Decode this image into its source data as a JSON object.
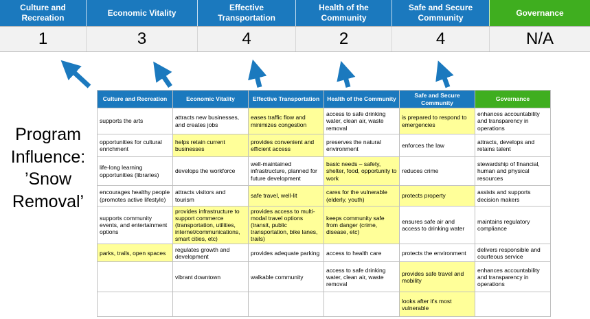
{
  "slide_title": "Program Influence: ’Snow Removal’",
  "colors": {
    "header_blue": "#1b79be",
    "header_green": "#3fae1f",
    "arrow_blue": "#1b79be",
    "highlight_yellow": "#ffff99",
    "score_band_gray": "#f2f2f2"
  },
  "banner": {
    "columns": [
      {
        "label": "Culture and Recreation",
        "score": "1",
        "color": "blue"
      },
      {
        "label": "Economic Vitality",
        "score": "3",
        "color": "blue"
      },
      {
        "label": "Effective Transportation",
        "score": "4",
        "color": "blue"
      },
      {
        "label": "Health of the Community",
        "score": "2",
        "color": "blue"
      },
      {
        "label": "Safe and Secure Community",
        "score": "4",
        "color": "blue"
      },
      {
        "label": "Governance",
        "score": "N/A",
        "color": "green"
      }
    ]
  },
  "matrix": {
    "headers": [
      {
        "label": "Culture and Recreation",
        "color": "blue"
      },
      {
        "label": "Economic Vitality",
        "color": "blue"
      },
      {
        "label": "Effective Transportation",
        "color": "blue"
      },
      {
        "label": "Health of the Community",
        "color": "blue"
      },
      {
        "label": "Safe and Secure Community",
        "color": "blue"
      },
      {
        "label": "Governance",
        "color": "green"
      }
    ],
    "rows": [
      [
        {
          "text": "supports the arts",
          "highlight": false
        },
        {
          "text": "attracts new businesses, and creates jobs",
          "highlight": false
        },
        {
          "text": "eases traffic flow and minimizes congestion",
          "highlight": true
        },
        {
          "text": "access to safe drinking water, clean air, waste removal",
          "highlight": false
        },
        {
          "text": "is prepared to respond to emergencies",
          "highlight": true
        },
        {
          "text": "enhances accountability and transparency in operations",
          "highlight": false
        }
      ],
      [
        {
          "text": "opportunities for cultural enrichment",
          "highlight": false
        },
        {
          "text": "helps retain current businesses",
          "highlight": true
        },
        {
          "text": "provides convenient and efficient access",
          "highlight": true
        },
        {
          "text": "preserves the natural environment",
          "highlight": false
        },
        {
          "text": "enforces the law",
          "highlight": false
        },
        {
          "text": "attracts, develops and retains talent",
          "highlight": false
        }
      ],
      [
        {
          "text": "life-long learning opportunities (libraries)",
          "highlight": false
        },
        {
          "text": "develops the workforce",
          "highlight": false
        },
        {
          "text": "well-maintained infrastructure, planned for future development",
          "highlight": false
        },
        {
          "text": "basic needs – safety, shelter, food, opportunity to work",
          "highlight": true
        },
        {
          "text": "reduces crime",
          "highlight": false
        },
        {
          "text": "stewardship of financial, human and physical resources",
          "highlight": false
        }
      ],
      [
        {
          "text": "encourages healthy people (promotes active lifestyle)",
          "highlight": false
        },
        {
          "text": "attracts visitors and tourism",
          "highlight": false
        },
        {
          "text": "safe travel, well-lit",
          "highlight": true
        },
        {
          "text": "cares for the vulnerable (elderly, youth)",
          "highlight": true
        },
        {
          "text": "protects property",
          "highlight": true
        },
        {
          "text": "assists and supports decision makers",
          "highlight": false
        }
      ],
      [
        {
          "text": "supports community events, and entertainment options",
          "highlight": false
        },
        {
          "text": "provides infrastructure to support commerce (transportation, utilities, internet/communications, smart cities, etc)",
          "highlight": true
        },
        {
          "text": "provides access to multi-modal travel options (transit, public transportation, bike lanes, trails)",
          "highlight": true
        },
        {
          "text": "keeps community safe from danger (crime, disease, etc)",
          "highlight": true
        },
        {
          "text": "ensures safe air and access to drinking water",
          "highlight": false
        },
        {
          "text": "maintains regulatory compliance",
          "highlight": false
        }
      ],
      [
        {
          "text": "parks, trails, open spaces",
          "highlight": true
        },
        {
          "text": "regulates growth and development",
          "highlight": false
        },
        {
          "text": "provides adequate parking",
          "highlight": false
        },
        {
          "text": "access to health care",
          "highlight": false
        },
        {
          "text": "protects the environment",
          "highlight": false
        },
        {
          "text": "delivers responsible and courteous service",
          "highlight": false
        }
      ],
      [
        {
          "text": "",
          "highlight": false
        },
        {
          "text": "vibrant downtown",
          "highlight": false
        },
        {
          "text": "walkable community",
          "highlight": false
        },
        {
          "text": "access to safe drinking water, clean air, waste removal",
          "highlight": false
        },
        {
          "text": "provides safe travel and mobility",
          "highlight": true
        },
        {
          "text": "enhances accountability and transparency in operations",
          "highlight": false
        }
      ],
      [
        {
          "text": "",
          "highlight": false
        },
        {
          "text": "",
          "highlight": false
        },
        {
          "text": "",
          "highlight": false
        },
        {
          "text": "",
          "highlight": false
        },
        {
          "text": "looks after it's most vulnerable",
          "highlight": true
        },
        {
          "text": "",
          "highlight": false
        }
      ]
    ]
  }
}
